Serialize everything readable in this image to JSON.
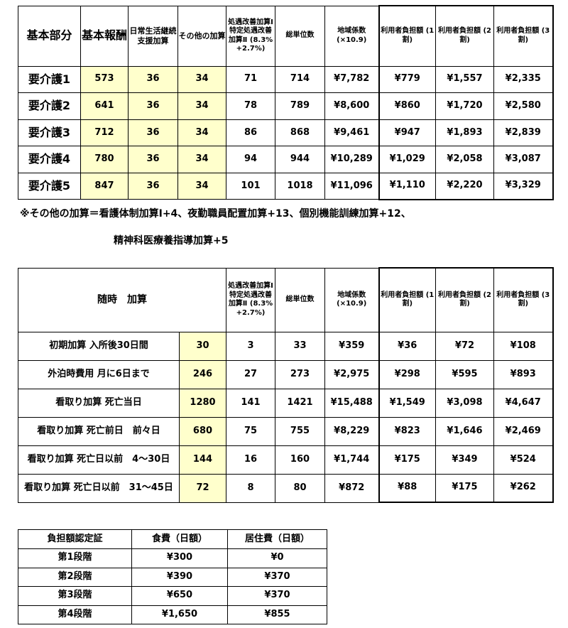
{
  "table1": {
    "headers": [
      "基本部分",
      "基本報酬",
      "日常生活継続支援加算",
      "その他の加算",
      "処遇改善加算Ⅰ 特定処遇改善加算Ⅱ (8.3% +2.7%)",
      "総単位数",
      "地域係数 (×10.9)",
      "利用者負担額 (1割)",
      "利用者負担額 (2割)",
      "利用者負担額 (3割)"
    ],
    "rows": [
      [
        "要介護1",
        "573",
        "36",
        "34",
        "71",
        "714",
        "¥7,782",
        "¥779",
        "¥1,557",
        "¥2,335"
      ],
      [
        "要介護2",
        "641",
        "36",
        "34",
        "78",
        "789",
        "¥8,600",
        "¥860",
        "¥1,720",
        "¥2,580"
      ],
      [
        "要介護3",
        "712",
        "36",
        "34",
        "86",
        "868",
        "¥9,461",
        "¥947",
        "¥1,893",
        "¥2,839"
      ],
      [
        "要介護4",
        "780",
        "36",
        "34",
        "94",
        "944",
        "¥10,289",
        "¥1,029",
        "¥2,058",
        "¥3,087"
      ],
      [
        "要介護5",
        "847",
        "36",
        "34",
        "101",
        "1018",
        "¥11,096",
        "¥1,110",
        "¥2,220",
        "¥3,329"
      ]
    ]
  },
  "footnote": {
    "line1": "※その他の加算＝看護体制加算Ⅰ+4、夜勤職員配置加算+13、個別機能訓練加算+12、",
    "line2": "精神科医療養指導加算+5"
  },
  "table2": {
    "headers": [
      "随時　加算",
      "処遇改善加算Ⅰ 特定処遇改善加算Ⅱ (8.3% +2.7%)",
      "総単位数",
      "地域係数 (×10.9)",
      "利用者負担額 (1割)",
      "利用者負担額 (2割)",
      "利用者負担額 (3割)"
    ],
    "rows": [
      [
        "初期加算 入所後30日間",
        "30",
        "3",
        "33",
        "¥359",
        "¥36",
        "¥72",
        "¥108"
      ],
      [
        "外泊時費用 月に6日まで",
        "246",
        "27",
        "273",
        "¥2,975",
        "¥298",
        "¥595",
        "¥893"
      ],
      [
        "看取り加算 死亡当日",
        "1280",
        "141",
        "1421",
        "¥15,488",
        "¥1,549",
        "¥3,098",
        "¥4,647"
      ],
      [
        "看取り加算 死亡前日　前々日",
        "680",
        "75",
        "755",
        "¥8,229",
        "¥823",
        "¥1,646",
        "¥2,469"
      ],
      [
        "看取り加算 死亡日以前　4～30日",
        "144",
        "16",
        "160",
        "¥1,744",
        "¥175",
        "¥349",
        "¥524"
      ],
      [
        "看取り加算 死亡日以前　31～45日",
        "72",
        "8",
        "80",
        "¥872",
        "¥88",
        "¥175",
        "¥262"
      ]
    ]
  },
  "table3": {
    "headers": [
      "負担額認定証",
      "食費（日額）",
      "居住費（日額）"
    ],
    "rows": [
      [
        "第1段階",
        "¥300",
        "¥0"
      ],
      [
        "第2段階",
        "¥390",
        "¥370"
      ],
      [
        "第3段階",
        "¥650",
        "¥370"
      ],
      [
        "第4段階",
        "¥1,650",
        "¥855"
      ]
    ]
  },
  "colors": {
    "highlight": "#ffffcc"
  }
}
